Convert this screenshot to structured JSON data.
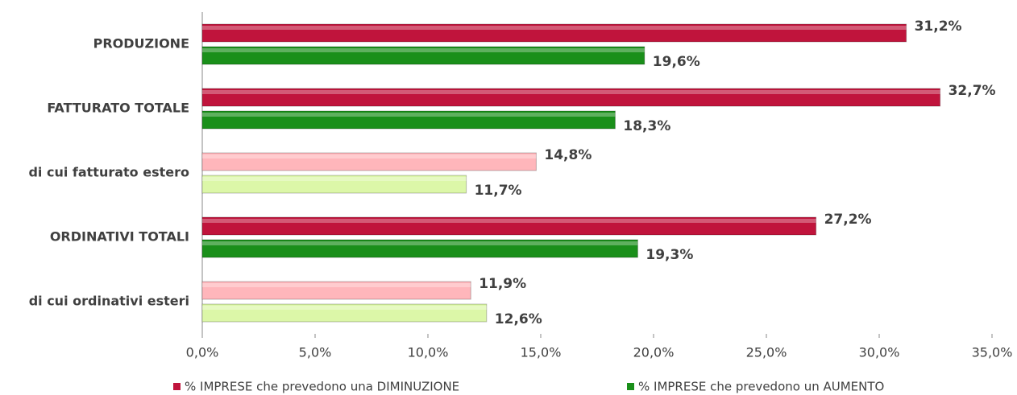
{
  "chart_data": {
    "type": "hbar",
    "categories": [
      "PRODUZIONE",
      "FATTURATO TOTALE",
      "di cui fatturato estero",
      "ORDINATIVI TOTALI",
      "di cui ordinativi esteri"
    ],
    "series": [
      {
        "name": "% IMPRESE che prevedono una DIMINUZIONE",
        "color": "#c0143c",
        "point_colors": [
          "#c0143c",
          "#c0143c",
          "#ffb6bb",
          "#c0143c",
          "#ffb6bb"
        ],
        "values": [
          31.2,
          32.7,
          14.8,
          27.2,
          11.9
        ],
        "value_labels": [
          "31,2%",
          "32,7%",
          "14,8%",
          "27,2%",
          "11,9%"
        ]
      },
      {
        "name": "% IMPRESE che prevedono un AUMENTO",
        "color": "#1a8f1a",
        "point_colors": [
          "#1a8f1a",
          "#1a8f1a",
          "#dcf7a8",
          "#1a8f1a",
          "#dcf7a8"
        ],
        "values": [
          19.6,
          18.3,
          11.7,
          19.3,
          12.6
        ],
        "value_labels": [
          "19,6%",
          "18,3%",
          "11,7%",
          "19,3%",
          "12,6%"
        ]
      }
    ],
    "xlim": [
      0,
      35
    ],
    "xticks": [
      {
        "value": 0,
        "label": "0,0%"
      },
      {
        "value": 5,
        "label": "5,0%"
      },
      {
        "value": 10,
        "label": "10,0%"
      },
      {
        "value": 15,
        "label": "15,0%"
      },
      {
        "value": 20,
        "label": "20,0%"
      },
      {
        "value": 25,
        "label": "25,0%"
      },
      {
        "value": 30,
        "label": "30,0%"
      },
      {
        "value": 35,
        "label": "35,0%"
      }
    ],
    "legend": "bottom"
  }
}
